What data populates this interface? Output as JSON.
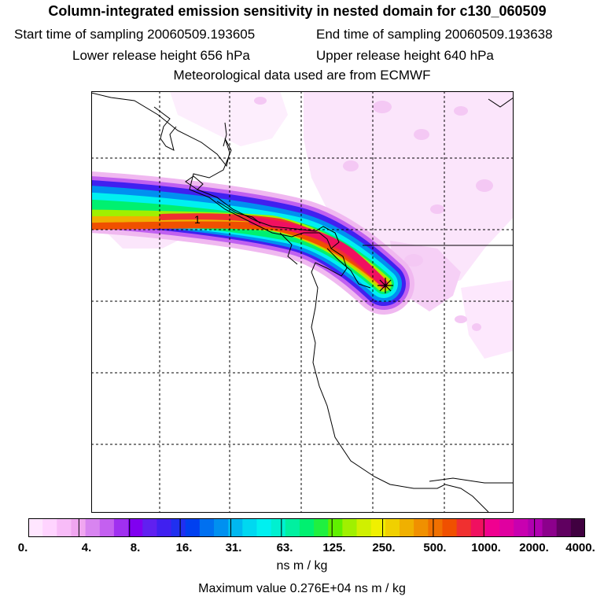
{
  "header": {
    "title": "Column-integrated emission sensitivity in nested domain for c130_060509",
    "start": "Start time of sampling 20060509.193605",
    "end": "End time of sampling 20060509.193638",
    "lower": "Lower release height  656 hPa",
    "upper": "Upper release height  640 hPa",
    "met": "Meteorological data used are from ECMWF"
  },
  "map": {
    "contour_label": "1"
  },
  "colorbar": {
    "tick_labels": [
      "0.",
      "4.",
      "8.",
      "16.",
      "31.",
      "63.",
      "125.",
      "250.",
      "500.",
      "1000.",
      "2000.",
      "4000."
    ],
    "colors": [
      "#ffe6ff",
      "#ffd4ff",
      "#f8bcf8",
      "#f0a6f0",
      "#d884f0",
      "#c460f0",
      "#a030f0",
      "#8000f0",
      "#6020f0",
      "#4020f0",
      "#2030f0",
      "#0040f0",
      "#0070f0",
      "#0090f0",
      "#00b8f0",
      "#00d8f0",
      "#00f0f0",
      "#00f0d0",
      "#00f0a0",
      "#00f070",
      "#20f040",
      "#60f000",
      "#a0f000",
      "#d0f000",
      "#f0f000",
      "#f0d000",
      "#f0b000",
      "#f09000",
      "#f07000",
      "#f05000",
      "#f03030",
      "#f01060",
      "#f00090",
      "#e000a0",
      "#c800b0",
      "#b000b0",
      "#8c008c",
      "#600060",
      "#400040"
    ],
    "units": "ns m / kg",
    "max_value": "Maximum value  0.276E+04 ns m / kg"
  }
}
